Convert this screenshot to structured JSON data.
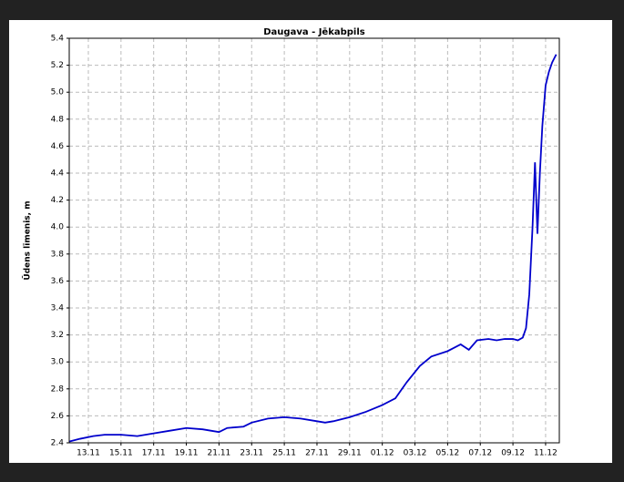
{
  "chart_data": {
    "type": "line",
    "title": "Daugava - Jēkabpils",
    "ylabel": "Ūdens līmenis, m",
    "x": [
      11.85,
      12.5,
      13.3,
      14,
      15,
      16,
      17,
      18,
      19,
      20,
      20.5,
      21,
      21.5,
      22.5,
      23,
      24,
      25,
      26,
      27,
      27.5,
      28,
      29,
      30,
      31,
      31.8,
      32.5,
      33.3,
      34,
      35,
      35.8,
      36.3,
      36.8,
      37.5,
      38,
      38.5,
      39,
      39.3,
      39.6,
      39.8,
      40.0,
      40.2,
      40.35,
      40.5,
      40.65,
      40.8,
      41.0,
      41.2,
      41.4,
      41.65
    ],
    "series": [
      {
        "name": "Daugava - Jēkabpils",
        "color": "#0000cc",
        "values": [
          2.41,
          2.43,
          2.45,
          2.46,
          2.46,
          2.45,
          2.47,
          2.49,
          2.51,
          2.5,
          2.49,
          2.48,
          2.51,
          2.52,
          2.55,
          2.58,
          2.59,
          2.58,
          2.56,
          2.55,
          2.56,
          2.59,
          2.63,
          2.68,
          2.73,
          2.85,
          2.97,
          3.04,
          3.08,
          3.13,
          3.09,
          3.16,
          3.17,
          3.16,
          3.17,
          3.17,
          3.16,
          3.18,
          3.25,
          3.5,
          4.0,
          4.48,
          3.95,
          4.4,
          4.75,
          5.05,
          5.15,
          5.22,
          5.28
        ]
      }
    ],
    "xlim": [
      11.83,
      41.84
    ],
    "xticks": [
      {
        "value": 13,
        "label": "13.11"
      },
      {
        "value": 15,
        "label": "15.11"
      },
      {
        "value": 17,
        "label": "17.11"
      },
      {
        "value": 19,
        "label": "19.11"
      },
      {
        "value": 21,
        "label": "21.11"
      },
      {
        "value": 23,
        "label": "23.11"
      },
      {
        "value": 25,
        "label": "25.11"
      },
      {
        "value": 27,
        "label": "27.11"
      },
      {
        "value": 29,
        "label": "29.11"
      },
      {
        "value": 31,
        "label": "01.12"
      },
      {
        "value": 33,
        "label": "03.12"
      },
      {
        "value": 35,
        "label": "05.12"
      },
      {
        "value": 37,
        "label": "07.12"
      },
      {
        "value": 39,
        "label": "09.12"
      },
      {
        "value": 41,
        "label": "11.12"
      }
    ],
    "ylim": [
      2.4,
      5.4
    ],
    "yticks": [
      2.4,
      2.6,
      2.8,
      {
        "value": 3,
        "label": "3.0"
      },
      3.2,
      3.4,
      3.6,
      3.8,
      {
        "value": 4,
        "label": "4.0"
      },
      4.2,
      4.4,
      4.6,
      4.8,
      {
        "value": 5,
        "label": "5.0"
      },
      5.2,
      5.4
    ],
    "grid": true
  }
}
